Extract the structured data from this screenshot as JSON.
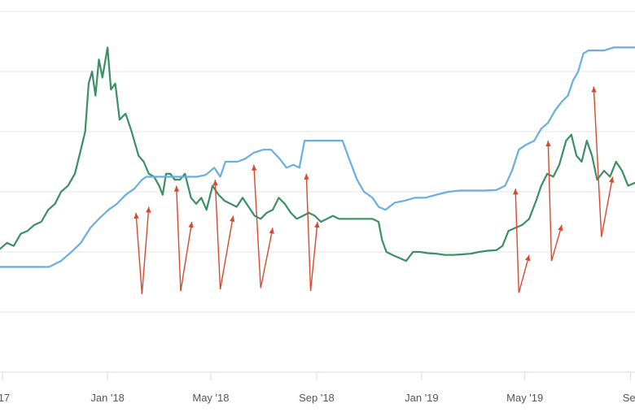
{
  "chart_data": {
    "type": "line",
    "title": "",
    "xlabel": "",
    "ylabel": "",
    "grid": true,
    "x_tick_labels": [
      {
        "label": "'17",
        "date": "2017-09-01"
      },
      {
        "label": "Jan '18",
        "date": "2018-01-01"
      },
      {
        "label": "May '18",
        "date": "2018-05-01"
      },
      {
        "label": "Sep '18",
        "date": "2018-09-01"
      },
      {
        "label": "Jan '19",
        "date": "2019-01-01"
      },
      {
        "label": "May '19",
        "date": "2019-05-01"
      },
      {
        "label": "Se",
        "date": "2019-09-01"
      }
    ],
    "xlim": [
      "2017-08-29",
      "2019-09-06"
    ],
    "ylim": [
      0,
      6
    ],
    "gridlines_y": [
      1,
      2,
      3,
      4,
      5,
      6
    ],
    "series": [
      {
        "color": "#3a8f63",
        "points": [
          [
            "2017-08-29",
            2.05
          ],
          [
            "2017-09-06",
            2.15
          ],
          [
            "2017-09-14",
            2.1
          ],
          [
            "2017-09-22",
            2.3
          ],
          [
            "2017-09-30",
            2.35
          ],
          [
            "2017-10-08",
            2.45
          ],
          [
            "2017-10-16",
            2.5
          ],
          [
            "2017-10-24",
            2.7
          ],
          [
            "2017-11-01",
            2.8
          ],
          [
            "2017-11-08",
            3.0
          ],
          [
            "2017-11-16",
            3.1
          ],
          [
            "2017-11-24",
            3.3
          ],
          [
            "2017-12-01",
            3.7
          ],
          [
            "2017-12-06",
            4.0
          ],
          [
            "2017-12-10",
            4.8
          ],
          [
            "2017-12-14",
            5.0
          ],
          [
            "2017-12-18",
            4.6
          ],
          [
            "2017-12-22",
            5.2
          ],
          [
            "2017-12-26",
            4.9
          ],
          [
            "2018-01-01",
            5.4
          ],
          [
            "2018-01-05",
            4.7
          ],
          [
            "2018-01-10",
            4.8
          ],
          [
            "2018-01-15",
            4.2
          ],
          [
            "2018-01-22",
            4.3
          ],
          [
            "2018-01-29",
            4.0
          ],
          [
            "2018-02-06",
            3.6
          ],
          [
            "2018-02-12",
            3.5
          ],
          [
            "2018-02-18",
            3.3
          ],
          [
            "2018-02-24",
            3.25
          ],
          [
            "2018-03-02",
            3.1
          ],
          [
            "2018-03-06",
            2.95
          ],
          [
            "2018-03-10",
            3.3
          ],
          [
            "2018-03-15",
            3.3
          ],
          [
            "2018-03-20",
            3.2
          ],
          [
            "2018-03-26",
            3.2
          ],
          [
            "2018-04-01",
            3.3
          ],
          [
            "2018-04-08",
            2.9
          ],
          [
            "2018-04-14",
            2.8
          ],
          [
            "2018-04-20",
            2.9
          ],
          [
            "2018-04-26",
            2.7
          ],
          [
            "2018-05-03",
            3.1
          ],
          [
            "2018-05-10",
            2.95
          ],
          [
            "2018-05-17",
            2.85
          ],
          [
            "2018-05-24",
            2.8
          ],
          [
            "2018-05-31",
            2.75
          ],
          [
            "2018-06-07",
            2.9
          ],
          [
            "2018-06-14",
            2.75
          ],
          [
            "2018-06-21",
            2.6
          ],
          [
            "2018-06-28",
            2.55
          ],
          [
            "2018-07-05",
            2.65
          ],
          [
            "2018-07-12",
            2.7
          ],
          [
            "2018-07-19",
            2.9
          ],
          [
            "2018-07-26",
            2.8
          ],
          [
            "2018-08-02",
            2.65
          ],
          [
            "2018-08-09",
            2.55
          ],
          [
            "2018-08-16",
            2.6
          ],
          [
            "2018-08-23",
            2.65
          ],
          [
            "2018-08-30",
            2.6
          ],
          [
            "2018-09-06",
            2.5
          ],
          [
            "2018-09-13",
            2.55
          ],
          [
            "2018-09-20",
            2.6
          ],
          [
            "2018-09-27",
            2.55
          ],
          [
            "2018-10-06",
            2.55
          ],
          [
            "2018-10-16",
            2.55
          ],
          [
            "2018-10-26",
            2.55
          ],
          [
            "2018-11-05",
            2.55
          ],
          [
            "2018-11-12",
            2.5
          ],
          [
            "2018-11-16",
            2.2
          ],
          [
            "2018-11-21",
            2.0
          ],
          [
            "2018-11-28",
            1.95
          ],
          [
            "2018-12-06",
            1.9
          ],
          [
            "2018-12-14",
            1.85
          ],
          [
            "2018-12-22",
            2.0
          ],
          [
            "2018-12-30",
            2.0
          ],
          [
            "2019-01-08",
            1.98
          ],
          [
            "2019-01-18",
            1.97
          ],
          [
            "2019-01-28",
            1.95
          ],
          [
            "2019-02-07",
            1.95
          ],
          [
            "2019-02-17",
            1.96
          ],
          [
            "2019-02-27",
            1.97
          ],
          [
            "2019-03-09",
            2.0
          ],
          [
            "2019-03-19",
            2.02
          ],
          [
            "2019-03-29",
            2.03
          ],
          [
            "2019-04-05",
            2.1
          ],
          [
            "2019-04-12",
            2.35
          ],
          [
            "2019-04-20",
            2.4
          ],
          [
            "2019-04-28",
            2.45
          ],
          [
            "2019-05-06",
            2.55
          ],
          [
            "2019-05-14",
            2.85
          ],
          [
            "2019-05-20",
            3.1
          ],
          [
            "2019-05-27",
            3.3
          ],
          [
            "2019-06-03",
            3.25
          ],
          [
            "2019-06-10",
            3.45
          ],
          [
            "2019-06-18",
            3.85
          ],
          [
            "2019-06-24",
            3.95
          ],
          [
            "2019-06-30",
            3.6
          ],
          [
            "2019-07-06",
            3.5
          ],
          [
            "2019-07-12",
            3.85
          ],
          [
            "2019-07-18",
            3.6
          ],
          [
            "2019-07-24",
            3.2
          ],
          [
            "2019-08-01",
            3.35
          ],
          [
            "2019-08-08",
            3.25
          ],
          [
            "2019-08-15",
            3.5
          ],
          [
            "2019-08-22",
            3.35
          ],
          [
            "2019-08-29",
            3.1
          ],
          [
            "2019-09-06",
            3.15
          ]
        ]
      },
      {
        "color": "#6aaee0",
        "points": [
          [
            "2017-08-29",
            1.75
          ],
          [
            "2017-09-15",
            1.75
          ],
          [
            "2017-10-05",
            1.75
          ],
          [
            "2017-10-25",
            1.75
          ],
          [
            "2017-11-08",
            1.85
          ],
          [
            "2017-11-20",
            2.0
          ],
          [
            "2017-12-01",
            2.15
          ],
          [
            "2017-12-12",
            2.4
          ],
          [
            "2017-12-22",
            2.55
          ],
          [
            "2018-01-02",
            2.7
          ],
          [
            "2018-01-12",
            2.8
          ],
          [
            "2018-01-22",
            2.95
          ],
          [
            "2018-02-01",
            3.05
          ],
          [
            "2018-02-10",
            3.2
          ],
          [
            "2018-02-15",
            3.25
          ],
          [
            "2018-02-22",
            3.25
          ],
          [
            "2018-03-05",
            3.25
          ],
          [
            "2018-03-15",
            3.25
          ],
          [
            "2018-03-25",
            3.25
          ],
          [
            "2018-04-05",
            3.25
          ],
          [
            "2018-04-15",
            3.25
          ],
          [
            "2018-04-25",
            3.28
          ],
          [
            "2018-05-05",
            3.4
          ],
          [
            "2018-05-12",
            3.25
          ],
          [
            "2018-05-18",
            3.5
          ],
          [
            "2018-06-01",
            3.5
          ],
          [
            "2018-06-10",
            3.55
          ],
          [
            "2018-06-20",
            3.65
          ],
          [
            "2018-07-01",
            3.7
          ],
          [
            "2018-07-10",
            3.7
          ],
          [
            "2018-07-20",
            3.55
          ],
          [
            "2018-07-28",
            3.4
          ],
          [
            "2018-08-05",
            3.45
          ],
          [
            "2018-08-12",
            3.4
          ],
          [
            "2018-08-18",
            3.85
          ],
          [
            "2018-08-28",
            3.85
          ],
          [
            "2018-09-08",
            3.85
          ],
          [
            "2018-09-20",
            3.85
          ],
          [
            "2018-10-01",
            3.85
          ],
          [
            "2018-10-10",
            3.5
          ],
          [
            "2018-10-18",
            3.2
          ],
          [
            "2018-10-26",
            3.0
          ],
          [
            "2018-11-05",
            2.9
          ],
          [
            "2018-11-12",
            2.75
          ],
          [
            "2018-11-20",
            2.7
          ],
          [
            "2018-12-01",
            2.82
          ],
          [
            "2018-12-12",
            2.85
          ],
          [
            "2018-12-24",
            2.9
          ],
          [
            "2019-01-05",
            2.9
          ],
          [
            "2019-01-18",
            2.95
          ],
          [
            "2019-02-01",
            3.0
          ],
          [
            "2019-02-15",
            3.02
          ],
          [
            "2019-03-01",
            3.02
          ],
          [
            "2019-03-15",
            3.02
          ],
          [
            "2019-03-29",
            3.03
          ],
          [
            "2019-04-08",
            3.1
          ],
          [
            "2019-04-16",
            3.35
          ],
          [
            "2019-04-24",
            3.7
          ],
          [
            "2019-05-02",
            3.78
          ],
          [
            "2019-05-12",
            3.85
          ],
          [
            "2019-05-20",
            4.05
          ],
          [
            "2019-05-28",
            4.15
          ],
          [
            "2019-06-05",
            4.35
          ],
          [
            "2019-06-13",
            4.5
          ],
          [
            "2019-06-20",
            4.6
          ],
          [
            "2019-06-26",
            4.85
          ],
          [
            "2019-07-02",
            5.0
          ],
          [
            "2019-07-08",
            5.3
          ],
          [
            "2019-07-14",
            5.35
          ],
          [
            "2019-07-22",
            5.35
          ],
          [
            "2019-08-01",
            5.35
          ],
          [
            "2019-08-12",
            5.4
          ],
          [
            "2019-08-24",
            5.4
          ],
          [
            "2019-09-06",
            5.4
          ]
        ]
      }
    ],
    "arrows": {
      "color": "#d9482e",
      "items": [
        {
          "from": [
            "2018-02-10",
            1.3
          ],
          "to": [
            "2018-02-03",
            2.65
          ]
        },
        {
          "from": [
            "2018-02-10",
            1.3
          ],
          "to": [
            "2018-02-18",
            2.75
          ]
        },
        {
          "from": [
            "2018-03-27",
            1.35
          ],
          "to": [
            "2018-03-22",
            3.1
          ]
        },
        {
          "from": [
            "2018-03-27",
            1.35
          ],
          "to": [
            "2018-04-09",
            2.5
          ]
        },
        {
          "from": [
            "2018-05-12",
            1.38
          ],
          "to": [
            "2018-05-06",
            3.2
          ]
        },
        {
          "from": [
            "2018-05-12",
            1.38
          ],
          "to": [
            "2018-05-27",
            2.6
          ]
        },
        {
          "from": [
            "2018-06-28",
            1.4
          ],
          "to": [
            "2018-06-20",
            3.45
          ]
        },
        {
          "from": [
            "2018-06-28",
            1.4
          ],
          "to": [
            "2018-07-12",
            2.4
          ]
        },
        {
          "from": [
            "2018-08-25",
            1.35
          ],
          "to": [
            "2018-08-20",
            3.3
          ]
        },
        {
          "from": [
            "2018-08-25",
            1.35
          ],
          "to": [
            "2018-09-02",
            2.5
          ]
        },
        {
          "from": [
            "2019-04-24",
            1.32
          ],
          "to": [
            "2019-04-20",
            3.05
          ]
        },
        {
          "from": [
            "2019-04-24",
            1.32
          ],
          "to": [
            "2019-05-06",
            1.95
          ]
        },
        {
          "from": [
            "2019-06-01",
            1.85
          ],
          "to": [
            "2019-05-28",
            3.85
          ]
        },
        {
          "from": [
            "2019-06-01",
            1.85
          ],
          "to": [
            "2019-06-13",
            2.45
          ]
        },
        {
          "from": [
            "2019-07-29",
            2.25
          ],
          "to": [
            "2019-07-20",
            4.75
          ]
        },
        {
          "from": [
            "2019-07-29",
            2.25
          ],
          "to": [
            "2019-08-11",
            3.25
          ]
        }
      ]
    }
  }
}
